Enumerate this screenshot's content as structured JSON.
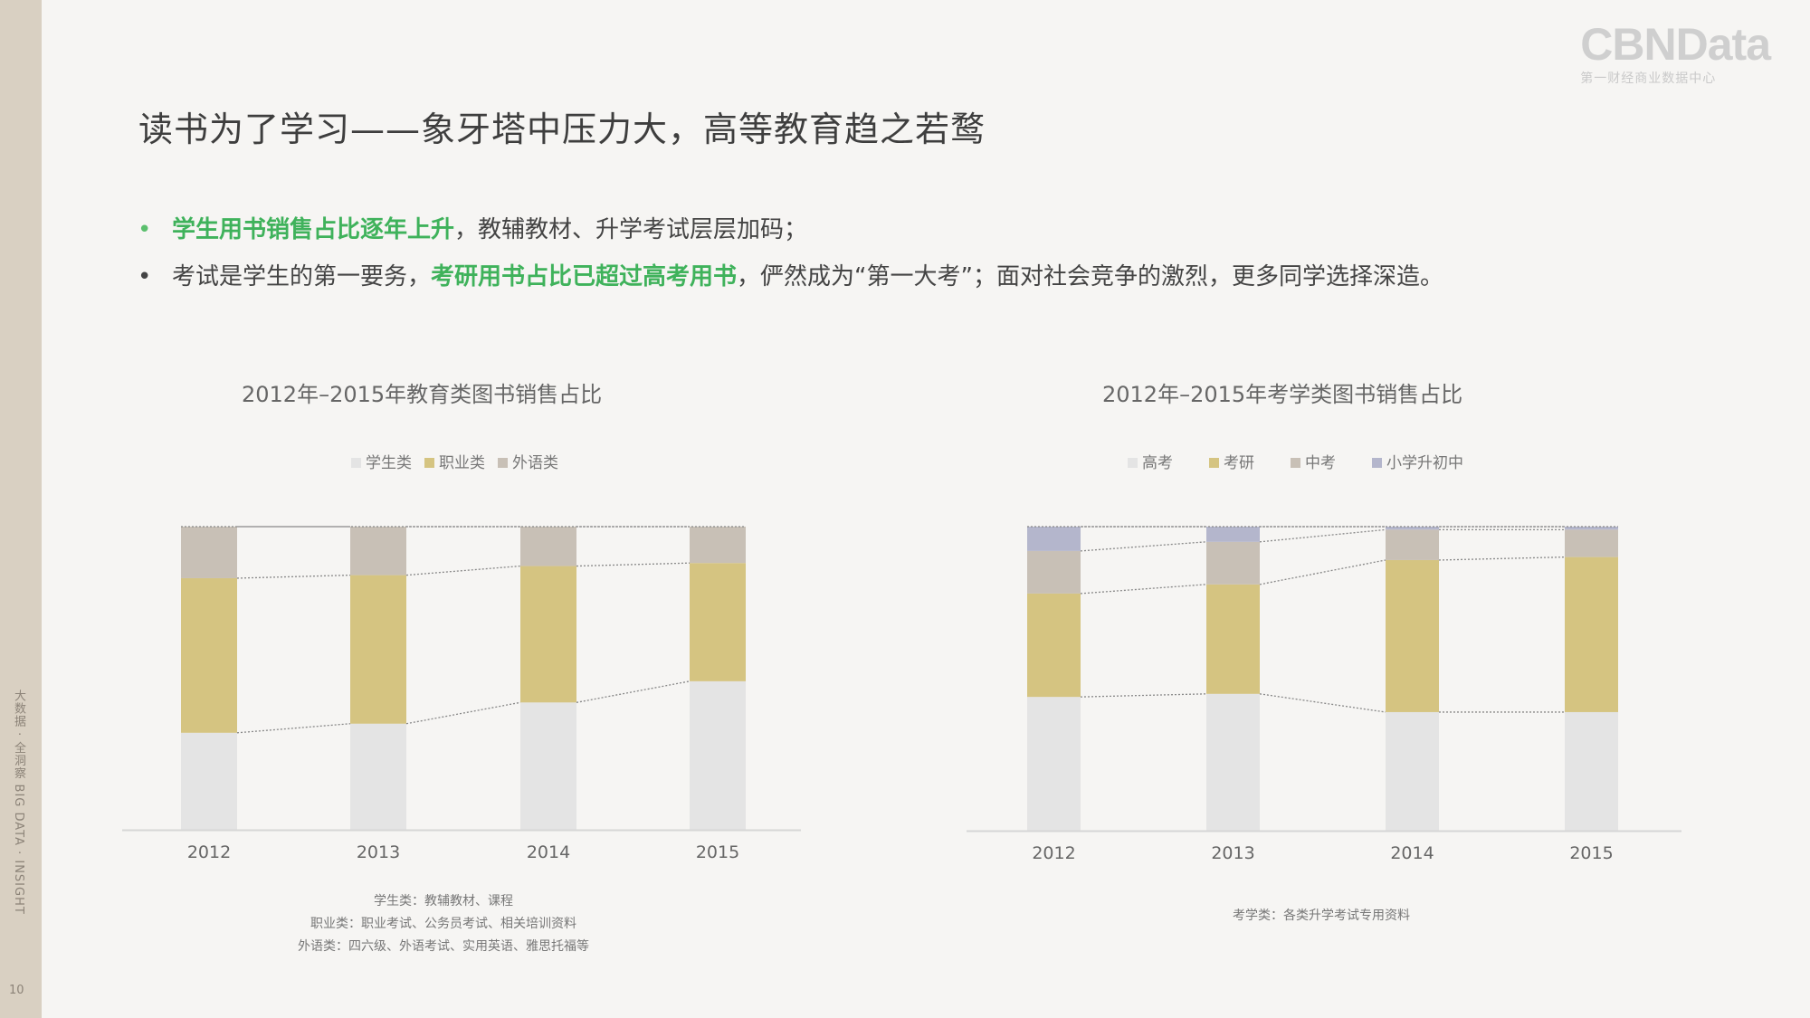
{
  "sidebar": {
    "vertical_text": "大数据 · 全洞察  BIG DATA · INSIGHT",
    "page_number": "10"
  },
  "logo": {
    "main": "CBNData",
    "sub": "第一财经商业数据中心"
  },
  "title": "读书为了学习——象牙塔中压力大，高等教育趋之若鹜",
  "bullets": [
    {
      "highlight": "学生用书销售占比逐年上升",
      "rest": "，教辅教材、升学考试层层加码；"
    },
    {
      "pre": "考试是学生的第一要务，",
      "highlight": "考研用书占比已超过高考用书",
      "rest": "，俨然成为“第一大考”；面对社会竞争的激烈，更多同学选择深造。"
    }
  ],
  "colors": {
    "gray_light": "#e4e4e4",
    "tan_yellow": "#d5c481",
    "taupe": "#c8c0b6",
    "lavender": "#b4b6cc",
    "highlight_green": "#3fb25b"
  },
  "chart_data": [
    {
      "type": "bar",
      "stacked": true,
      "normalized": true,
      "title": "2012年–2015年教育类图书销售占比",
      "categories": [
        "2012",
        "2013",
        "2014",
        "2015"
      ],
      "series": [
        {
          "name": "学生类",
          "color": "#e4e4e4",
          "values": [
            0.32,
            0.35,
            0.42,
            0.49
          ]
        },
        {
          "name": "职业类",
          "color": "#d5c481",
          "values": [
            0.51,
            0.49,
            0.45,
            0.39
          ]
        },
        {
          "name": "外语类",
          "color": "#c8c0b6",
          "values": [
            0.17,
            0.16,
            0.13,
            0.12
          ]
        }
      ],
      "ylim": [
        0,
        1
      ],
      "connector_lines": true,
      "footnotes": [
        "学生类：教辅教材、课程",
        "职业类：职业考试、公务员考试、相关培训资料",
        "外语类：四六级、外语考试、实用英语、雅思托福等"
      ]
    },
    {
      "type": "bar",
      "stacked": true,
      "normalized": true,
      "title": "2012年–2015年考学类图书销售占比",
      "categories": [
        "2012",
        "2013",
        "2014",
        "2015"
      ],
      "series": [
        {
          "name": "高考",
          "color": "#e4e4e4",
          "values": [
            0.44,
            0.45,
            0.39,
            0.39
          ]
        },
        {
          "name": "考研",
          "color": "#d5c481",
          "values": [
            0.34,
            0.36,
            0.5,
            0.51
          ]
        },
        {
          "name": "中考",
          "color": "#c8c0b6",
          "values": [
            0.14,
            0.14,
            0.1,
            0.09
          ]
        },
        {
          "name": "小学升初中",
          "color": "#b4b6cc",
          "values": [
            0.08,
            0.05,
            0.01,
            0.01
          ]
        }
      ],
      "ylim": [
        0,
        1
      ],
      "connector_lines": true,
      "footnotes": [
        "考学类：各类升学考试专用资料"
      ]
    }
  ]
}
